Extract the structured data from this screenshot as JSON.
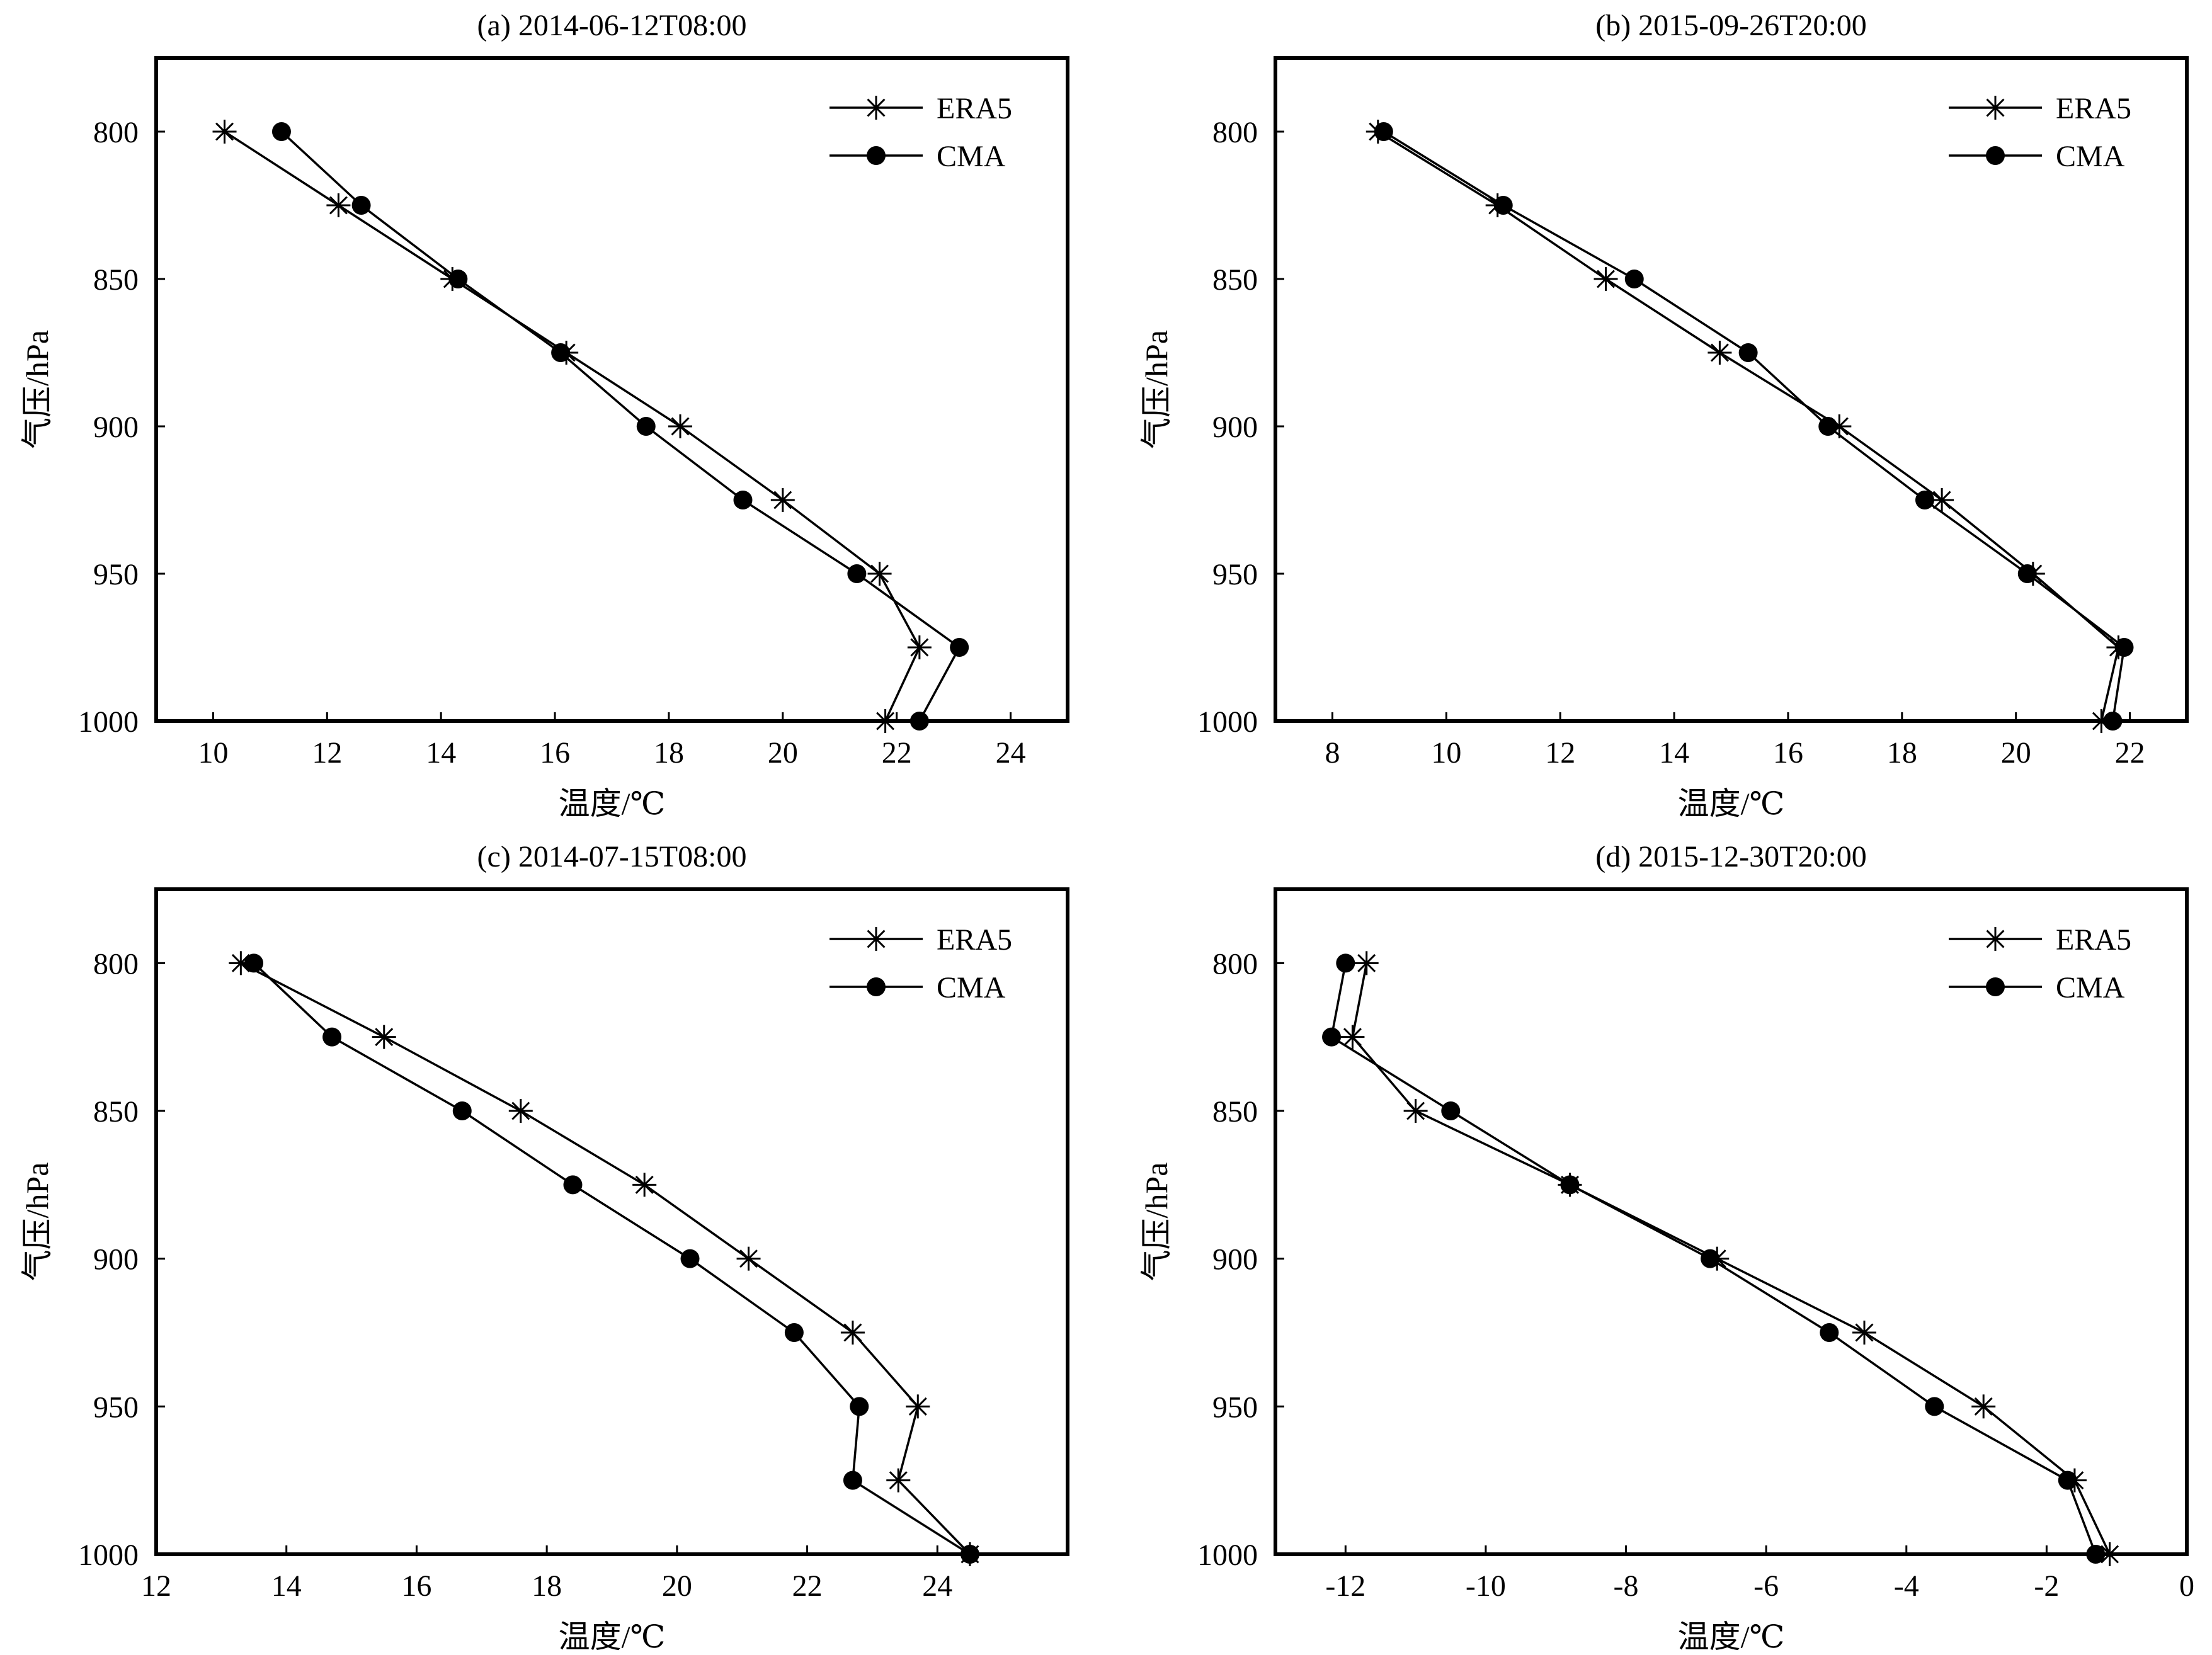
{
  "chart_data": [
    {
      "type": "line",
      "title": "(a) 2014-06-12T08:00",
      "xlabel": "温度/℃",
      "ylabel": "气压/hPa",
      "xlim": [
        9,
        25
      ],
      "ylim": [
        775,
        1000
      ],
      "y_inverted": true,
      "xticks": [
        10,
        12,
        14,
        16,
        18,
        20,
        22,
        24
      ],
      "yticks": [
        800,
        850,
        900,
        950,
        1000
      ],
      "legend_position": "top-right",
      "grid": false,
      "y": [
        800,
        825,
        850,
        875,
        900,
        925,
        950,
        975,
        1000
      ],
      "series": [
        {
          "name": "ERA5",
          "marker": "asterisk",
          "values": [
            10.2,
            12.2,
            14.2,
            16.2,
            18.2,
            20.0,
            21.7,
            22.4,
            21.8
          ]
        },
        {
          "name": "CMA",
          "marker": "circle",
          "values": [
            11.2,
            12.6,
            14.3,
            16.1,
            17.6,
            19.3,
            21.3,
            23.1,
            22.4
          ]
        }
      ]
    },
    {
      "type": "line",
      "title": "(b) 2015-09-26T20:00",
      "xlabel": "温度/℃",
      "ylabel": "气压/hPa",
      "xlim": [
        7,
        23
      ],
      "ylim": [
        775,
        1000
      ],
      "y_inverted": true,
      "xticks": [
        8,
        10,
        12,
        14,
        16,
        18,
        20,
        22
      ],
      "yticks": [
        800,
        850,
        900,
        950,
        1000
      ],
      "legend_position": "top-right",
      "grid": false,
      "y": [
        800,
        825,
        850,
        875,
        900,
        925,
        950,
        975,
        1000
      ],
      "series": [
        {
          "name": "ERA5",
          "marker": "asterisk",
          "values": [
            8.8,
            10.9,
            12.8,
            14.8,
            16.9,
            18.7,
            20.3,
            21.8,
            21.5
          ]
        },
        {
          "name": "CMA",
          "marker": "circle",
          "values": [
            8.9,
            11.0,
            13.3,
            15.3,
            16.7,
            18.4,
            20.2,
            21.9,
            21.7
          ]
        }
      ]
    },
    {
      "type": "line",
      "title": "(c) 2014-07-15T08:00",
      "xlabel": "温度/℃",
      "ylabel": "气压/hPa",
      "xlim": [
        12,
        26
      ],
      "ylim": [
        775,
        1000
      ],
      "y_inverted": true,
      "xticks": [
        12,
        14,
        16,
        18,
        20,
        22,
        24
      ],
      "yticks": [
        800,
        850,
        900,
        950,
        1000
      ],
      "legend_position": "top-right",
      "grid": false,
      "y": [
        800,
        825,
        850,
        875,
        900,
        925,
        950,
        975,
        1000
      ],
      "series": [
        {
          "name": "ERA5",
          "marker": "asterisk",
          "values": [
            13.3,
            15.5,
            17.6,
            19.5,
            21.1,
            22.7,
            23.7,
            23.4,
            24.5
          ]
        },
        {
          "name": "CMA",
          "marker": "circle",
          "values": [
            13.5,
            14.7,
            16.7,
            18.4,
            20.2,
            21.8,
            22.8,
            22.7,
            24.5
          ]
        }
      ]
    },
    {
      "type": "line",
      "title": "(d) 2015-12-30T20:00",
      "xlabel": "温度/℃",
      "ylabel": "气压/hPa",
      "xlim": [
        -13,
        0
      ],
      "ylim": [
        775,
        1000
      ],
      "y_inverted": true,
      "xticks": [
        -12,
        -10,
        -8,
        -6,
        -4,
        -2,
        0
      ],
      "yticks": [
        800,
        850,
        900,
        950,
        1000
      ],
      "legend_position": "top-right",
      "grid": false,
      "y": [
        800,
        825,
        850,
        875,
        900,
        925,
        950,
        975,
        1000
      ],
      "series": [
        {
          "name": "ERA5",
          "marker": "asterisk",
          "values": [
            -11.7,
            -11.9,
            -11.0,
            -8.8,
            -6.7,
            -4.6,
            -2.9,
            -1.6,
            -1.1
          ]
        },
        {
          "name": "CMA",
          "marker": "circle",
          "values": [
            -12.0,
            -12.2,
            -10.5,
            -8.8,
            -6.8,
            -5.1,
            -3.6,
            -1.7,
            -1.3
          ]
        }
      ]
    }
  ]
}
